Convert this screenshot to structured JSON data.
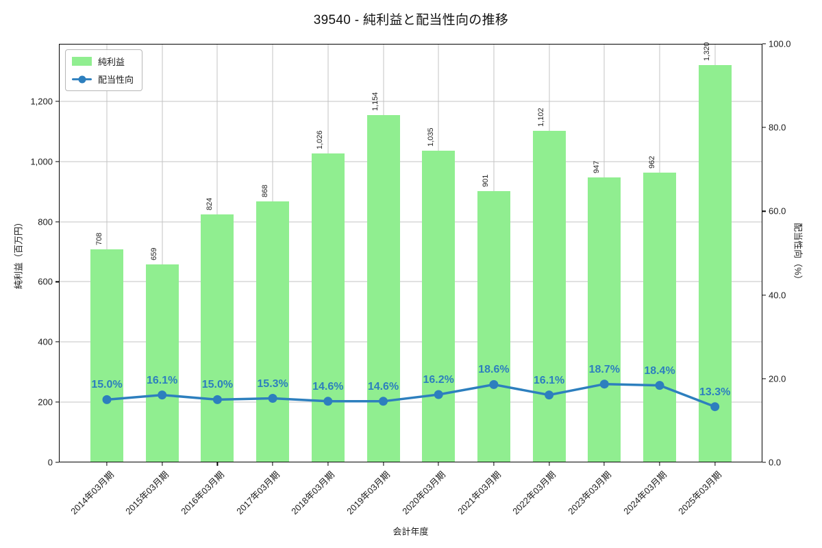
{
  "chart_data": {
    "type": "bar+line",
    "title": "39540 - 純利益と配当性向の推移",
    "categories": [
      "2014年03月期",
      "2015年03月期",
      "2016年03月期",
      "2017年03月期",
      "2018年03月期",
      "2019年03月期",
      "2020年03月期",
      "2021年03月期",
      "2022年03月期",
      "2023年03月期",
      "2024年03月期",
      "2025年03月期"
    ],
    "series": [
      {
        "name": "純利益",
        "type": "bar",
        "axis": "left",
        "color": "#90ee90",
        "values": [
          708,
          659,
          824,
          868,
          1026,
          1154,
          1035,
          901,
          1102,
          947,
          962,
          1320
        ],
        "value_labels": [
          "708",
          "659",
          "824",
          "868",
          "1,026",
          "1,154",
          "1,035",
          "901",
          "1,102",
          "947",
          "962",
          "1,320"
        ]
      },
      {
        "name": "配当性向",
        "type": "line",
        "axis": "right",
        "color": "#2d7fbe",
        "marker": "circle",
        "values": [
          15.0,
          16.1,
          15.0,
          15.3,
          14.6,
          14.6,
          16.2,
          18.6,
          16.1,
          18.7,
          18.4,
          13.3
        ],
        "value_labels": [
          "15.0%",
          "16.1%",
          "15.0%",
          "15.3%",
          "14.6%",
          "14.6%",
          "16.2%",
          "18.6%",
          "16.1%",
          "18.7%",
          "18.4%",
          "13.3%"
        ]
      }
    ],
    "xlabel": "会計年度",
    "ylabel_left": "純利益（百万円）",
    "ylabel_right": "配当性向（%）",
    "ylim_left": [
      0,
      1391
    ],
    "ylim_right": [
      0,
      100
    ],
    "y_left_ticks": {
      "values": [
        0,
        200,
        400,
        600,
        800,
        1000,
        1200
      ],
      "labels": [
        "0",
        "200",
        "400",
        "600",
        "800",
        "1,000",
        "1,200"
      ]
    },
    "y_right_ticks": {
      "values": [
        0,
        20,
        40,
        60,
        80,
        100
      ],
      "labels": [
        "0.0",
        "20.0",
        "40.0",
        "60.0",
        "80.0",
        "100.0"
      ]
    },
    "grid": true,
    "legend_position": "upper left"
  }
}
